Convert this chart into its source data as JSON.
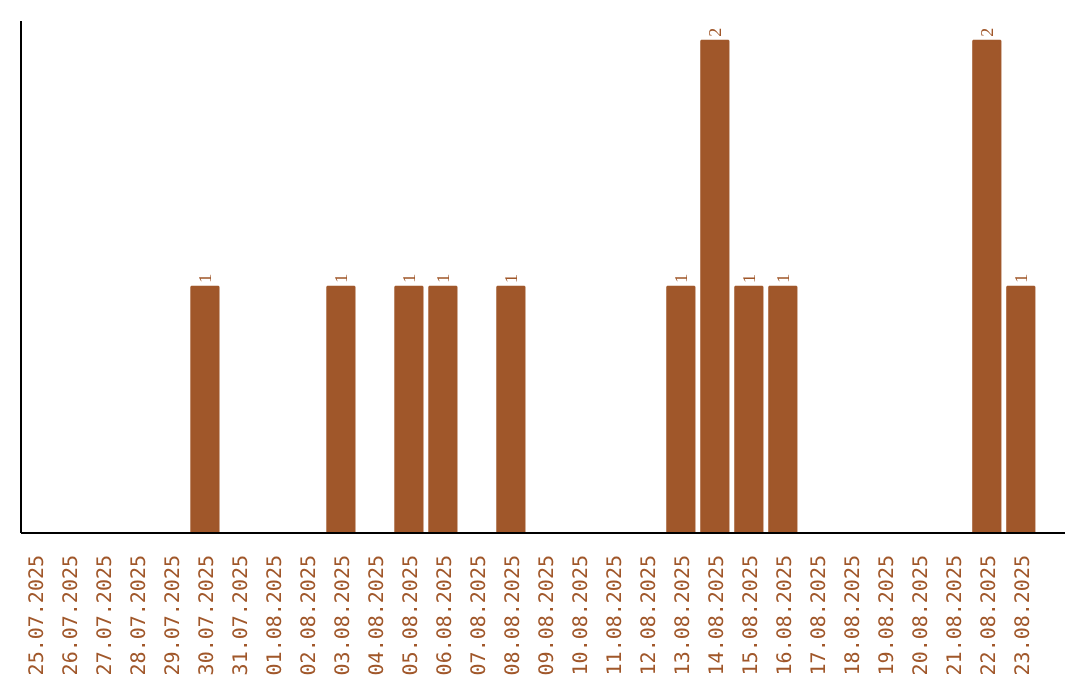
{
  "chart_data": {
    "type": "bar",
    "categories": [
      "25.07.2025",
      "26.07.2025",
      "27.07.2025",
      "28.07.2025",
      "29.07.2025",
      "30.07.2025",
      "31.07.2025",
      "01.08.2025",
      "02.08.2025",
      "03.08.2025",
      "04.08.2025",
      "05.08.2025",
      "06.08.2025",
      "07.08.2025",
      "08.08.2025",
      "09.08.2025",
      "10.08.2025",
      "11.08.2025",
      "12.08.2025",
      "13.08.2025",
      "14.08.2025",
      "15.08.2025",
      "16.08.2025",
      "17.08.2025",
      "18.08.2025",
      "19.08.2025",
      "20.08.2025",
      "21.08.2025",
      "22.08.2025",
      "23.08.2025"
    ],
    "values": [
      0,
      0,
      0,
      0,
      0,
      1,
      0,
      0,
      0,
      1,
      0,
      1,
      1,
      0,
      1,
      0,
      0,
      0,
      0,
      1,
      2,
      1,
      1,
      0,
      0,
      0,
      0,
      0,
      2,
      1
    ],
    "value_labels": [
      null,
      null,
      null,
      null,
      null,
      "1",
      null,
      null,
      null,
      "1",
      null,
      "1",
      "1",
      null,
      "1",
      null,
      null,
      null,
      null,
      "1",
      "2",
      "1",
      "1",
      null,
      null,
      null,
      null,
      null,
      "2",
      "1"
    ],
    "color": "#a0572a",
    "grid": false
  }
}
